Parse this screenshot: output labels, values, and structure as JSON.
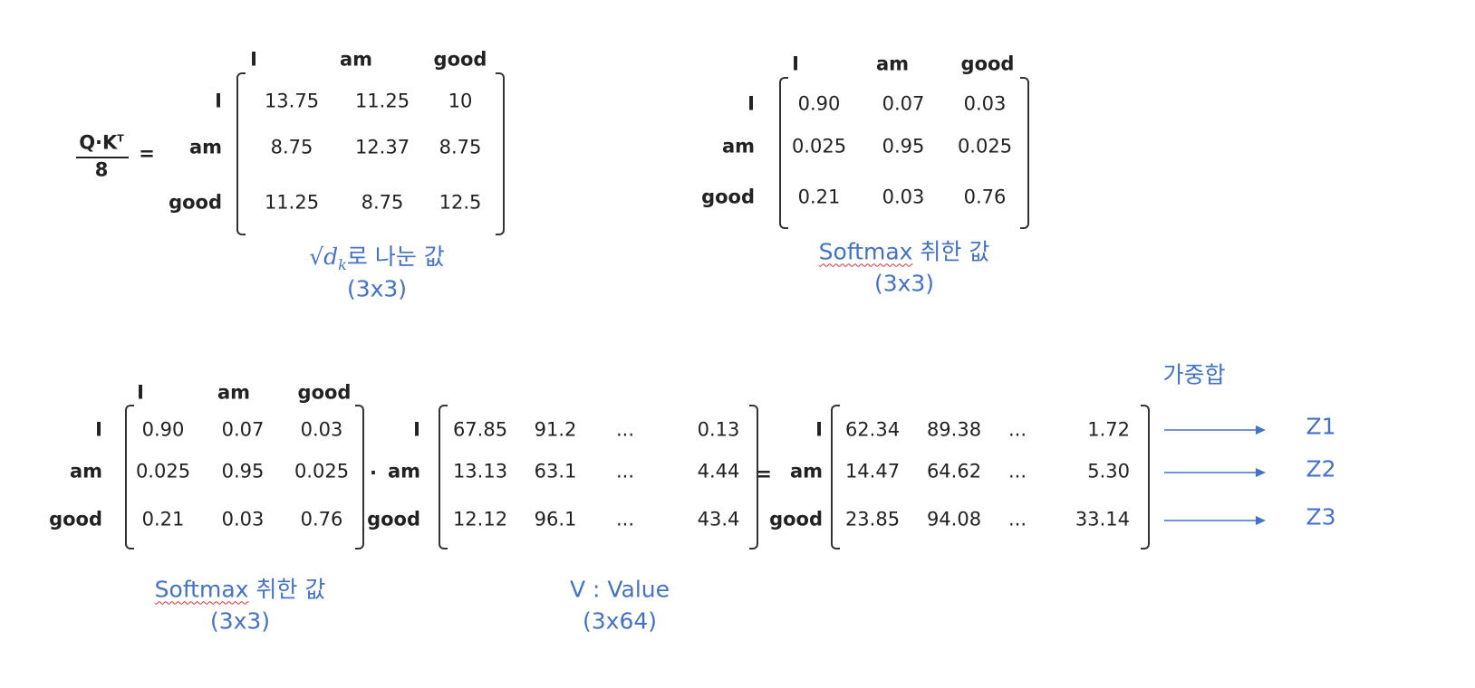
{
  "top_left_matrix": {
    "formula": {
      "numerator": "Q·K",
      "superscript": "T",
      "denominator": "8",
      "equals": "="
    },
    "column_labels": [
      "I",
      "am",
      "good"
    ],
    "row_labels": [
      "I",
      "am",
      "good"
    ],
    "rows": [
      [
        "13.75",
        "11.25",
        "10"
      ],
      [
        "8.75",
        "12.37",
        "8.75"
      ],
      [
        "11.25",
        "8.75",
        "12.5"
      ]
    ],
    "caption": {
      "radical": "√",
      "symbol": "d",
      "subscript": "k",
      "text": "로 나눈 값",
      "shape": "(3x3)"
    }
  },
  "top_right_matrix": {
    "column_labels": [
      "I",
      "am",
      "good"
    ],
    "row_labels": [
      "I",
      "am",
      "good"
    ],
    "rows": [
      [
        "0.90",
        "0.07",
        "0.03"
      ],
      [
        "0.025",
        "0.95",
        "0.025"
      ],
      [
        "0.21",
        "0.03",
        "0.76"
      ]
    ],
    "caption": {
      "word": "Softmax",
      "text": "취한 값",
      "shape": "(3x3)"
    }
  },
  "bottom": {
    "softmax_matrix": {
      "column_labels": [
        "I",
        "am",
        "good"
      ],
      "row_labels": [
        "I",
        "am",
        "good"
      ],
      "rows": [
        [
          "0.90",
          "0.07",
          "0.03"
        ],
        [
          "0.025",
          "0.95",
          "0.025"
        ],
        [
          "0.21",
          "0.03",
          "0.76"
        ]
      ],
      "caption": {
        "word": "Softmax",
        "text": "취한 값",
        "shape": "(3x3)"
      }
    },
    "dot": "·",
    "value_matrix": {
      "row_labels": [
        "I",
        "am",
        "good"
      ],
      "rows": [
        [
          "67.85",
          "91.2",
          "...",
          "0.13"
        ],
        [
          "13.13",
          "63.1",
          "...",
          "4.44"
        ],
        [
          "12.12",
          "96.1",
          "...",
          "43.4"
        ]
      ],
      "caption": {
        "text": "V : Value",
        "shape": "(3x64)"
      }
    },
    "equals": "=",
    "result_matrix": {
      "row_labels": [
        "I",
        "am",
        "good"
      ],
      "rows": [
        [
          "62.34",
          "89.38",
          "...",
          "1.72"
        ],
        [
          "14.47",
          "64.62",
          "...",
          "5.30"
        ],
        [
          "23.85",
          "94.08",
          "...",
          "33.14"
        ]
      ]
    },
    "weighted_sum_label": "가중합",
    "outputs": [
      "Z1",
      "Z2",
      "Z3"
    ]
  }
}
